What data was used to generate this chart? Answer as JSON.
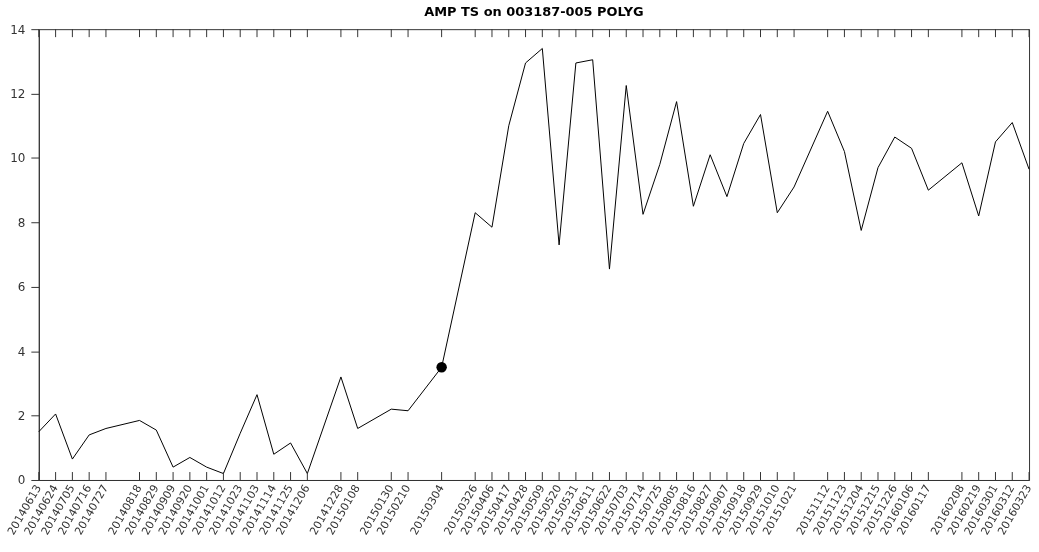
{
  "chart_data": {
    "type": "line",
    "title": "AMP TS on 003187-005 POLYG",
    "x": [
      "2014-06-13",
      "2014-06-24",
      "2014-07-05",
      "2014-07-16",
      "2014-07-27",
      "2014-08-18",
      "2014-08-29",
      "2014-09-09",
      "2014-09-20",
      "2014-10-01",
      "2014-10-12",
      "2014-10-23",
      "2014-11-03",
      "2014-11-14",
      "2014-11-25",
      "2014-12-06",
      "2014-12-28",
      "2015-01-08",
      "2015-01-30",
      "2015-02-10",
      "2015-03-04",
      "2015-03-26",
      "2015-04-06",
      "2015-04-17",
      "2015-04-28",
      "2015-05-09",
      "2015-05-20",
      "2015-05-31",
      "2015-06-11",
      "2015-06-22",
      "2015-07-03",
      "2015-07-14",
      "2015-07-25",
      "2015-08-05",
      "2015-08-16",
      "2015-08-27",
      "2015-09-07",
      "2015-09-18",
      "2015-09-29",
      "2015-10-10",
      "2015-10-21",
      "2015-11-12",
      "2015-11-23",
      "2015-12-04",
      "2015-12-15",
      "2015-12-26",
      "2016-01-06",
      "2016-01-17",
      "2016-02-08",
      "2016-02-19",
      "2016-03-01",
      "2016-03-12",
      "2016-03-23"
    ],
    "series": [
      {
        "color": "#000000",
        "marker": "none",
        "values": [
          1.5,
          2.05,
          0.65,
          1.4,
          1.6,
          1.85,
          1.55,
          0.4,
          0.7,
          0.4,
          0.2,
          1.45,
          2.65,
          0.8,
          1.15,
          0.2,
          3.2,
          1.6,
          2.2,
          2.15,
          3.5,
          8.3,
          7.85,
          11.0,
          12.95,
          13.4,
          7.3,
          12.95,
          13.05,
          6.55,
          12.25,
          8.25,
          9.8,
          11.75,
          8.5,
          10.1,
          8.8,
          10.45,
          11.35,
          8.3,
          9.1,
          11.45,
          10.2,
          7.75,
          9.7,
          10.65,
          10.3,
          9.0,
          9.85,
          8.2,
          10.5,
          11.1,
          9.65
        ]
      },
      {
        "type": "scatter",
        "color": "#000000",
        "marker": "circle",
        "x": [
          "2015-03-04"
        ],
        "values": [
          3.5
        ]
      }
    ],
    "ylim": [
      0,
      14
    ],
    "yticks": [
      0,
      2,
      4,
      6,
      8,
      10,
      12,
      14
    ],
    "xlim": [
      "2014-06-13",
      "2016-03-23"
    ],
    "xticks": [
      {
        "value": "2014-06-13",
        "label": "20140613"
      },
      {
        "value": "2014-06-24",
        "label": "20140624"
      },
      {
        "value": "2014-07-05",
        "label": "20140705"
      },
      {
        "value": "2014-07-16",
        "label": "20140716"
      },
      {
        "value": "2014-07-27",
        "label": "20140727"
      },
      {
        "value": "2014-08-18",
        "label": "20140818"
      },
      {
        "value": "2014-08-29",
        "label": "20140829"
      },
      {
        "value": "2014-09-09",
        "label": "20140909"
      },
      {
        "value": "2014-09-20",
        "label": "20140920"
      },
      {
        "value": "2014-10-01",
        "label": "20141001"
      },
      {
        "value": "2014-10-12",
        "label": "20141012"
      },
      {
        "value": "2014-10-23",
        "label": "20141023"
      },
      {
        "value": "2014-11-03",
        "label": "20141103"
      },
      {
        "value": "2014-11-14",
        "label": "20141114"
      },
      {
        "value": "2014-11-25",
        "label": "20141125"
      },
      {
        "value": "2014-12-06",
        "label": "20141206"
      },
      {
        "value": "2014-12-28",
        "label": "20141228"
      },
      {
        "value": "2015-01-08",
        "label": "20150108"
      },
      {
        "value": "2015-01-30",
        "label": "20150130"
      },
      {
        "value": "2015-02-10",
        "label": "20150210"
      },
      {
        "value": "2015-03-04",
        "label": "20150304"
      },
      {
        "value": "2015-03-26",
        "label": "20150326"
      },
      {
        "value": "2015-04-06",
        "label": "20150406"
      },
      {
        "value": "2015-04-17",
        "label": "20150417"
      },
      {
        "value": "2015-04-28",
        "label": "20150428"
      },
      {
        "value": "2015-05-09",
        "label": "20150509"
      },
      {
        "value": "2015-05-20",
        "label": "20150520"
      },
      {
        "value": "2015-05-31",
        "label": "20150531"
      },
      {
        "value": "2015-06-11",
        "label": "20150611"
      },
      {
        "value": "2015-06-22",
        "label": "20150622"
      },
      {
        "value": "2015-07-03",
        "label": "20150703"
      },
      {
        "value": "2015-07-14",
        "label": "20150714"
      },
      {
        "value": "2015-07-25",
        "label": "20150725"
      },
      {
        "value": "2015-08-05",
        "label": "20150805"
      },
      {
        "value": "2015-08-16",
        "label": "20150816"
      },
      {
        "value": "2015-08-27",
        "label": "20150827"
      },
      {
        "value": "2015-09-07",
        "label": "20150907"
      },
      {
        "value": "2015-09-18",
        "label": "20150918"
      },
      {
        "value": "2015-09-29",
        "label": "20150929"
      },
      {
        "value": "2015-10-10",
        "label": "20151010"
      },
      {
        "value": "2015-10-21",
        "label": "20151021"
      },
      {
        "value": "2015-11-12",
        "label": "20151112"
      },
      {
        "value": "2015-11-23",
        "label": "20151123"
      },
      {
        "value": "2015-12-04",
        "label": "20151204"
      },
      {
        "value": "2015-12-15",
        "label": "20151215"
      },
      {
        "value": "2015-12-26",
        "label": "20151226"
      },
      {
        "value": "2016-01-06",
        "label": "20160106"
      },
      {
        "value": "2016-01-17",
        "label": "20160117"
      },
      {
        "value": "2016-02-08",
        "label": "20160208"
      },
      {
        "value": "2016-02-19",
        "label": "20160219"
      },
      {
        "value": "2016-03-01",
        "label": "20160301"
      },
      {
        "value": "2016-03-12",
        "label": "20160312"
      },
      {
        "value": "2016-03-23",
        "label": "20160323"
      }
    ],
    "grid": false
  }
}
